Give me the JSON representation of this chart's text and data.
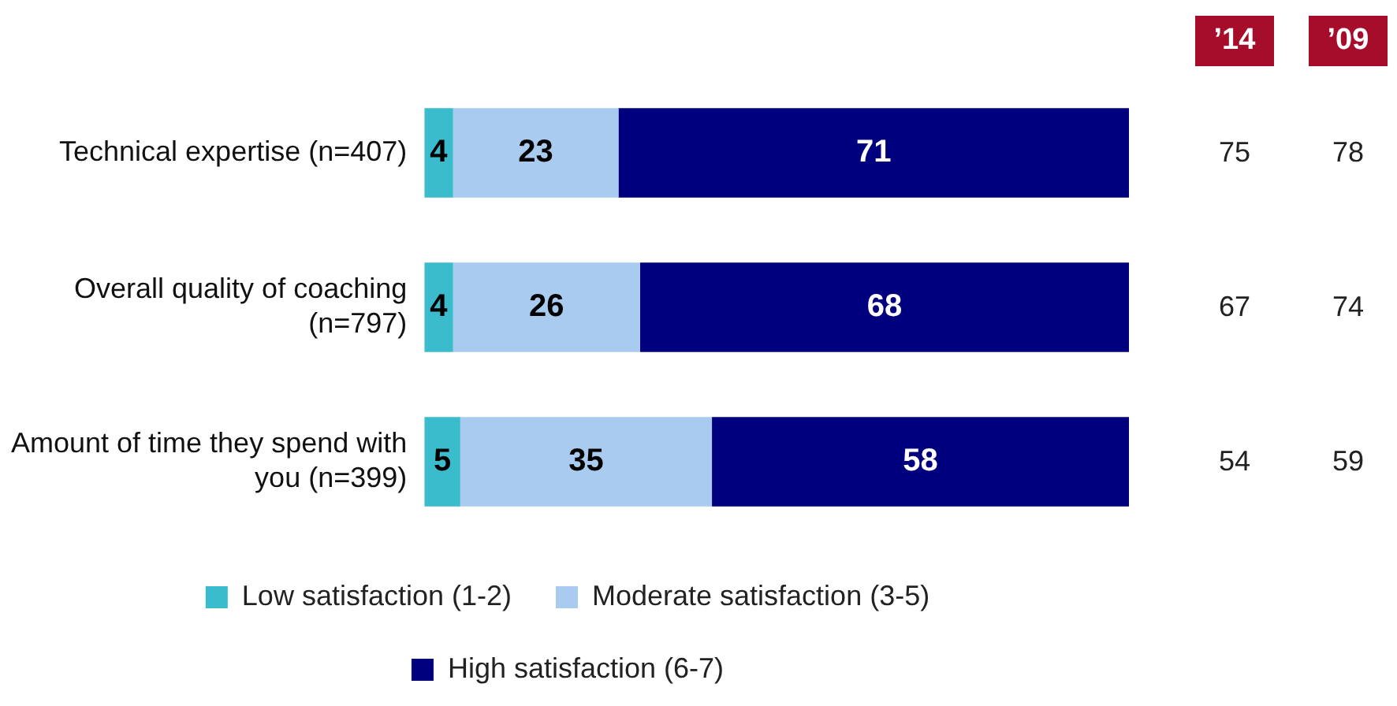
{
  "chart_data": {
    "type": "bar",
    "orientation": "horizontal",
    "stacked": true,
    "categories": [
      "Technical expertise (n=407)",
      "Overall quality of coaching (n=797)",
      "Amount of time they spend with you (n=399)"
    ],
    "series": [
      {
        "name": "Low satisfaction (1-2)",
        "color": "#3bbccc",
        "values": [
          4,
          4,
          5
        ]
      },
      {
        "name": "Moderate satisfaction (3-5)",
        "color": "#a9cbf0",
        "values": [
          23,
          26,
          35
        ]
      },
      {
        "name": "High satisfaction (6-7)",
        "color": "#00007e",
        "values": [
          71,
          68,
          58
        ]
      }
    ],
    "xlim": [
      0,
      98
    ],
    "tick_labels": "y",
    "grid": false,
    "legend": "bottom",
    "data_labels": true,
    "annotations": [
      "’14",
      "’09",
      "75",
      "78",
      "67",
      "74",
      "54",
      "59"
    ]
  }
}
